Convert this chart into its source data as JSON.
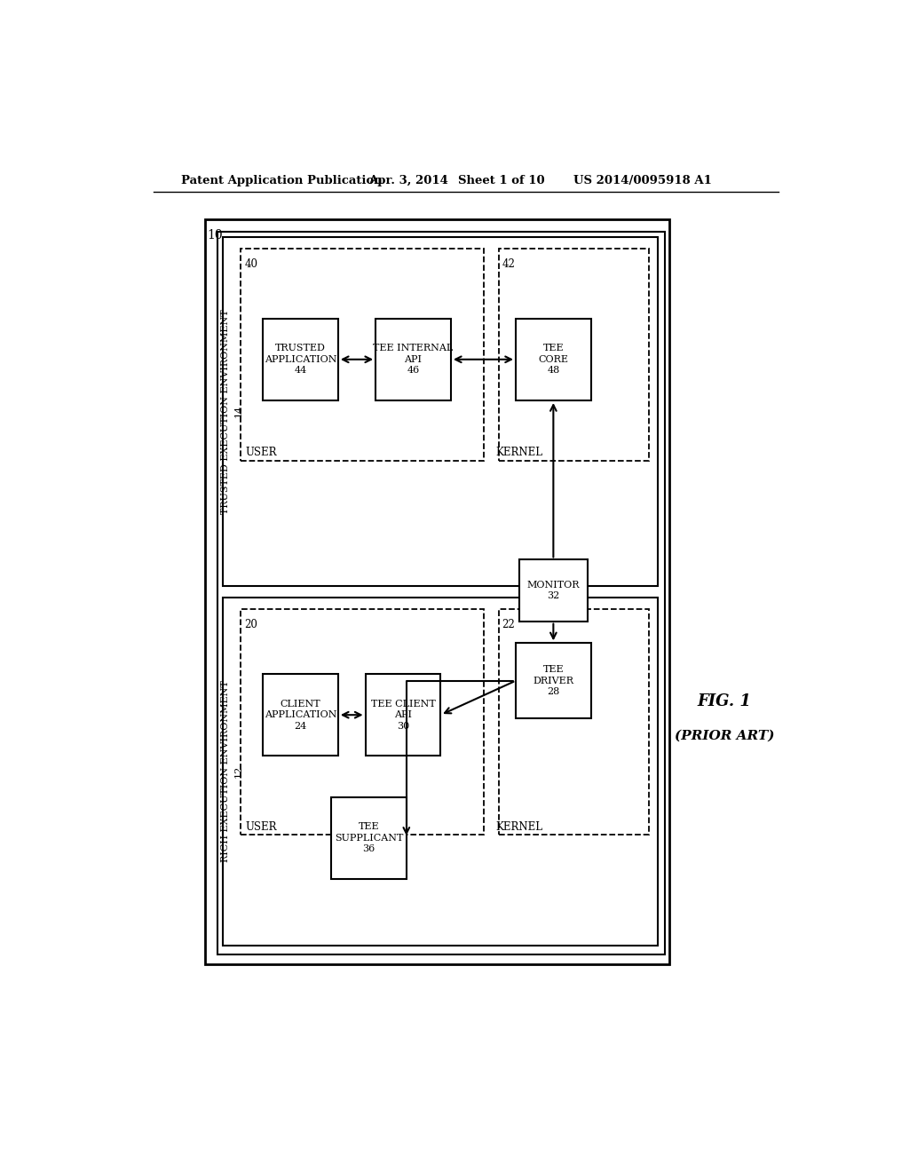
{
  "bg_color": "#ffffff",
  "header_text": "Patent Application Publication",
  "header_date": "Apr. 3, 2014",
  "header_sheet": "Sheet 1 of 10",
  "header_patent": "US 2014/0095918 A1",
  "fig_label": "FIG. 1",
  "fig_sublabel": "(PRIOR ART)"
}
